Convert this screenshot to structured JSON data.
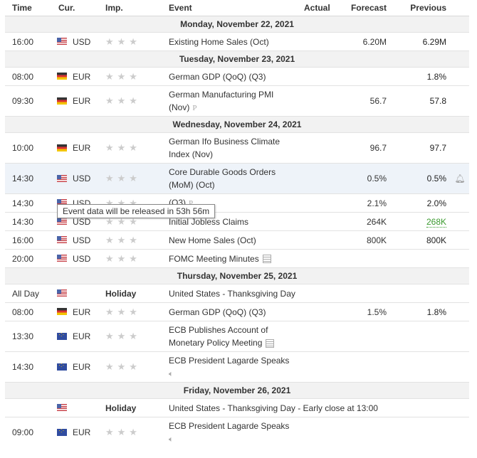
{
  "headers": {
    "time": "Time",
    "cur": "Cur.",
    "imp": "Imp.",
    "event": "Event",
    "actual": "Actual",
    "forecast": "Forecast",
    "previous": "Previous"
  },
  "days": [
    {
      "label": "Monday, November 22, 2021"
    },
    {
      "label": "Tuesday, November 23, 2021"
    },
    {
      "label": "Wednesday, November 24, 2021"
    },
    {
      "label": "Thursday, November 25, 2021"
    },
    {
      "label": "Friday, November 26, 2021"
    }
  ],
  "events": [
    {
      "time": "16:00",
      "cur": "USD",
      "flag": "us",
      "event": "Existing Home Sales (Oct)",
      "forecast": "6.20M",
      "previous": "6.29M"
    },
    {
      "time": "08:00",
      "cur": "EUR",
      "flag": "de",
      "event": "German GDP (QoQ) (Q3)",
      "forecast": "",
      "previous": "1.8%"
    },
    {
      "time": "09:30",
      "cur": "EUR",
      "flag": "de",
      "event_l1": "German Manufacturing PMI",
      "event_l2": "(Nov)",
      "forecast": "56.7",
      "previous": "57.8"
    },
    {
      "time": "10:00",
      "cur": "EUR",
      "flag": "de",
      "event_l1": "German Ifo Business Climate",
      "event_l2": "Index (Nov)",
      "forecast": "96.7",
      "previous": "97.7"
    },
    {
      "time": "14:30",
      "cur": "USD",
      "flag": "us",
      "event_l1": "Core Durable Goods Orders",
      "event_l2": "(MoM) (Oct)",
      "forecast": "0.5%",
      "previous": "0.5%"
    },
    {
      "time": "14:30",
      "cur": "USD",
      "flag": "us",
      "event": "(Q3)",
      "forecast": "2.1%",
      "previous": "2.0%"
    },
    {
      "time": "14:30",
      "cur": "USD",
      "flag": "us",
      "event": "Initial Jobless Claims",
      "forecast": "264K",
      "previous": "268K"
    },
    {
      "time": "16:00",
      "cur": "USD",
      "flag": "us",
      "event": "New Home Sales (Oct)",
      "forecast": "800K",
      "previous": "800K"
    },
    {
      "time": "20:00",
      "cur": "USD",
      "flag": "us",
      "event": "FOMC Meeting Minutes",
      "forecast": "",
      "previous": ""
    },
    {
      "time": "All Day",
      "cur": "",
      "flag": "us",
      "imp": "Holiday",
      "event": "United States - Thanksgiving Day"
    },
    {
      "time": "08:00",
      "cur": "EUR",
      "flag": "de",
      "event": "German GDP (QoQ) (Q3)",
      "forecast": "1.5%",
      "previous": "1.8%"
    },
    {
      "time": "13:30",
      "cur": "EUR",
      "flag": "eu",
      "event_l1": "ECB Publishes Account of",
      "event_l2": "Monetary Policy Meeting"
    },
    {
      "time": "14:30",
      "cur": "EUR",
      "flag": "eu",
      "event_l1": "ECB President Lagarde Speaks"
    },
    {
      "time": "",
      "cur": "",
      "flag": "us",
      "imp": "Holiday",
      "event": "United States - Thanksgiving Day - Early close at 13:00"
    },
    {
      "time": "09:00",
      "cur": "EUR",
      "flag": "eu",
      "event_l1": "ECB President Lagarde Speaks"
    }
  ],
  "tooltip": "Event data will be released in 53h 56m",
  "stars": "★★★",
  "p_mark": "P",
  "colors": {
    "green": "#3a9a2e",
    "highlight": "#eef3f9",
    "day_bg": "#f2f2f2"
  }
}
